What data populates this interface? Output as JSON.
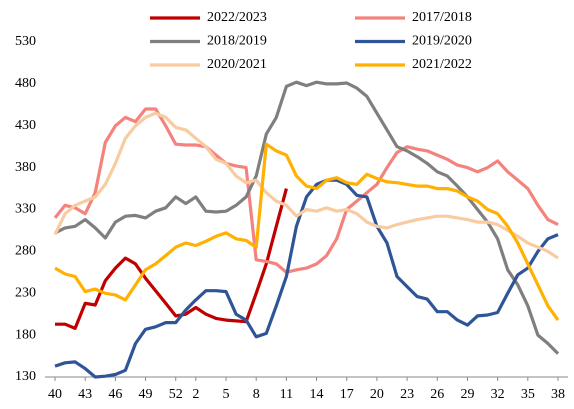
{
  "chart_data": {
    "type": "line",
    "categories": [
      "40",
      null,
      null,
      "43",
      null,
      null,
      "46",
      null,
      null,
      "49",
      null,
      null,
      "52",
      null,
      "2",
      null,
      null,
      "5",
      null,
      null,
      "8",
      null,
      null,
      "11",
      null,
      null,
      "14",
      null,
      null,
      "17",
      null,
      null,
      "20",
      null,
      null,
      "23",
      null,
      null,
      "26",
      null,
      null,
      "29",
      null,
      null,
      "32",
      null,
      null,
      "35",
      null,
      null,
      "38"
    ],
    "ylim": [
      130,
      530
    ],
    "yticks": [
      130,
      180,
      230,
      280,
      330,
      380,
      430,
      480,
      530
    ],
    "legend": "top",
    "series": [
      {
        "name": "2022/2023",
        "color": "#c00000",
        "values": [
          193,
          193,
          188,
          218,
          216,
          245,
          260,
          272,
          265,
          248,
          233,
          218,
          203,
          205,
          213,
          205,
          200,
          198,
          197,
          196,
          230,
          265,
          310,
          355,
          null,
          null,
          null,
          null,
          null,
          null,
          null,
          null,
          null,
          null,
          null,
          null,
          null,
          null,
          null,
          null,
          null,
          null,
          null,
          null,
          null,
          null,
          null,
          null,
          null,
          null,
          null
        ]
      },
      {
        "name": "2017/2018",
        "color": "#f4837d",
        "values": [
          320,
          335,
          332,
          325,
          350,
          410,
          430,
          440,
          435,
          450,
          450,
          430,
          408,
          407,
          407,
          405,
          395,
          385,
          382,
          380,
          270,
          268,
          265,
          255,
          258,
          260,
          265,
          275,
          295,
          330,
          340,
          350,
          360,
          380,
          398,
          405,
          402,
          400,
          395,
          390,
          383,
          380,
          375,
          380,
          388,
          375,
          365,
          355,
          335,
          318,
          312
        ]
      },
      {
        "name": "2018/2019",
        "color": "#7f7f7f",
        "values": [
          302,
          308,
          310,
          318,
          308,
          296,
          315,
          322,
          323,
          320,
          328,
          332,
          345,
          337,
          345,
          328,
          327,
          328,
          335,
          345,
          370,
          420,
          440,
          477,
          482,
          478,
          482,
          480,
          480,
          481,
          475,
          465,
          445,
          425,
          405,
          400,
          393,
          385,
          375,
          370,
          358,
          345,
          330,
          315,
          295,
          258,
          240,
          215,
          180,
          170,
          158
        ]
      },
      {
        "name": "2019/2020",
        "color": "#2f5597",
        "values": [
          143,
          147,
          148,
          140,
          130,
          131,
          133,
          138,
          170,
          187,
          190,
          195,
          195,
          210,
          222,
          233,
          233,
          232,
          205,
          198,
          178,
          182,
          215,
          250,
          310,
          345,
          360,
          365,
          365,
          360,
          347,
          345,
          310,
          290,
          250,
          238,
          226,
          223,
          208,
          208,
          198,
          192,
          203,
          204,
          207,
          230,
          252,
          260,
          280,
          295,
          300
        ]
      },
      {
        "name": "2020/2021",
        "color": "#f8cba0",
        "values": [
          300,
          325,
          335,
          340,
          345,
          360,
          385,
          415,
          430,
          440,
          445,
          440,
          428,
          425,
          415,
          405,
          390,
          385,
          370,
          362,
          365,
          350,
          340,
          335,
          322,
          330,
          328,
          332,
          328,
          330,
          325,
          315,
          310,
          308,
          312,
          315,
          318,
          320,
          322,
          322,
          320,
          318,
          315,
          315,
          312,
          305,
          298,
          290,
          285,
          280,
          272
        ]
      },
      {
        "name": "2021/2022",
        "color": "#ffb000",
        "values": [
          260,
          253,
          250,
          232,
          235,
          230,
          228,
          222,
          240,
          258,
          265,
          275,
          285,
          290,
          287,
          292,
          298,
          302,
          295,
          293,
          285,
          408,
          400,
          395,
          370,
          358,
          355,
          365,
          368,
          362,
          360,
          372,
          367,
          363,
          362,
          360,
          358,
          358,
          355,
          355,
          352,
          345,
          340,
          330,
          325,
          310,
          290,
          265,
          240,
          215,
          198
        ]
      }
    ]
  }
}
